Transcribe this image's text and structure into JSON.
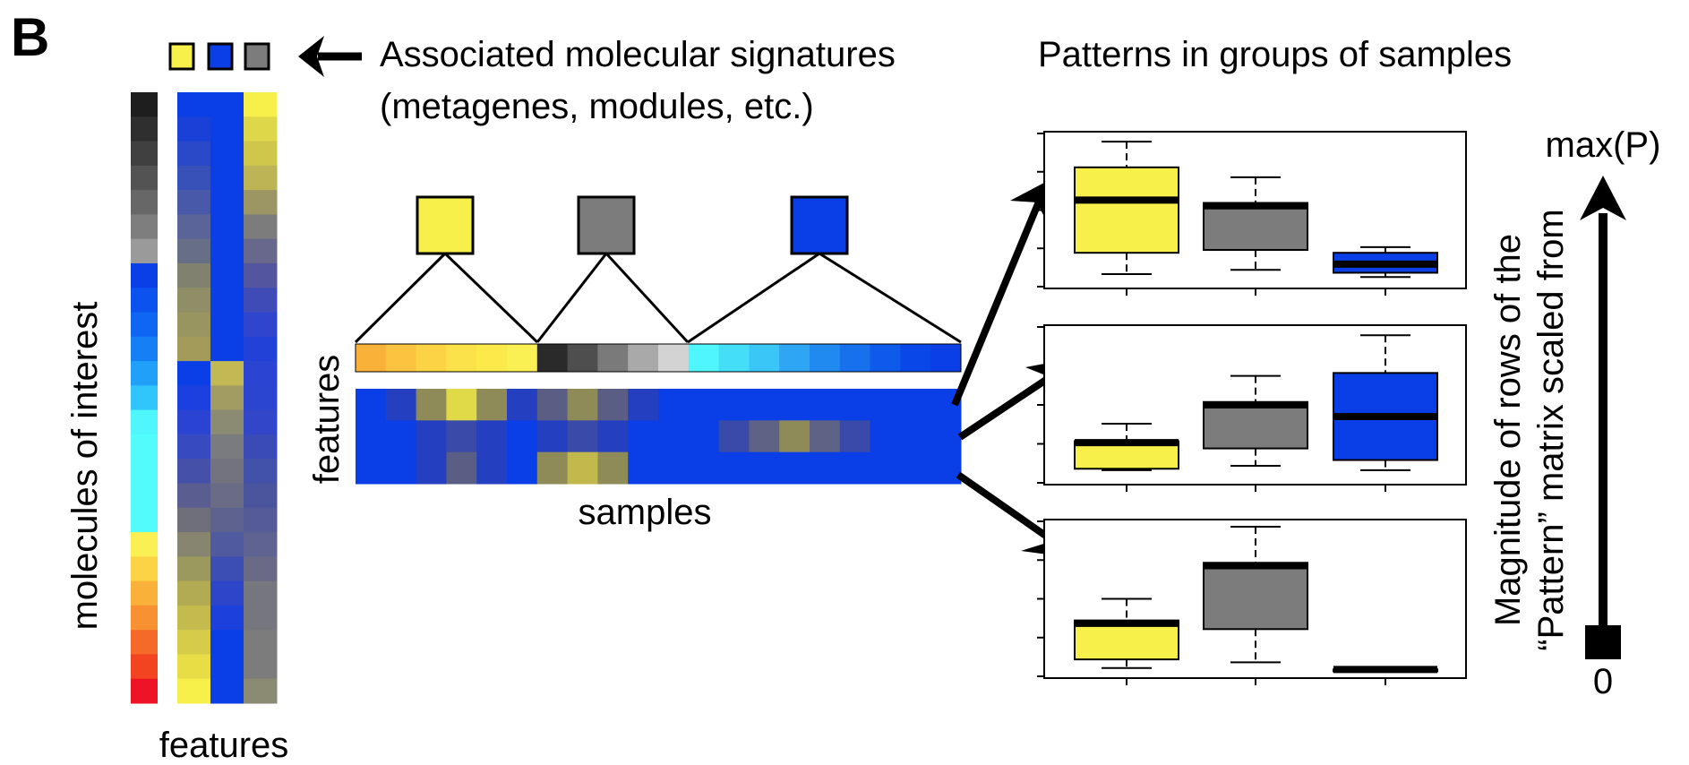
{
  "panel_letter": "B",
  "signature": {
    "title_line1": "Associated molecular signatures",
    "title_line2": "(metagenes, modules, etc.)",
    "legend_colors": [
      "#f7f04a",
      "#0a3fe8",
      "#7c7c7c"
    ]
  },
  "patterns_title": "Patterns in groups of samples",
  "labels": {
    "molecules_of_interest": "molecules of interest",
    "features_left": "features",
    "features_mid": "features",
    "samples": "samples"
  },
  "scale": {
    "line1": "Magnitude of rows of the",
    "line2": "“Pattern” matrix scaled from",
    "top": "max(P)",
    "bottom": "0"
  },
  "molecule_colors": [
    "#1e1e1e",
    "#2f2f2f",
    "#404040",
    "#535353",
    "#676767",
    "#7e7e7e",
    "#9a9a9a",
    "#0a3fe8",
    "#0b52ee",
    "#0e66f2",
    "#1580f5",
    "#20a0f8",
    "#30c6fb",
    "#4ff7fd",
    "#52fcfd",
    "#52fcfd",
    "#52fcfd",
    "#52fcfd",
    "#fbf053",
    "#fbd345",
    "#f9b13a",
    "#f89131",
    "#f56a28",
    "#f24421",
    "#ee1326"
  ],
  "feature_matrix": [
    [
      "#0a3fe8",
      "#0a3fe8",
      "#f7f04a"
    ],
    [
      "#1941d8",
      "#0a3fe8",
      "#dfd74a"
    ],
    [
      "#2a49c9",
      "#0a3fe8",
      "#cfc64c"
    ],
    [
      "#3751b9",
      "#0a3fe8",
      "#bdb555"
    ],
    [
      "#4759a8",
      "#0a3fe8",
      "#9b9663"
    ],
    [
      "#5a6499",
      "#0a3fe8",
      "#7d7c7d"
    ],
    [
      "#676f86",
      "#0a3fe8",
      "#68678c"
    ],
    [
      "#80826f",
      "#0a3fe8",
      "#53569e"
    ],
    [
      "#8f8e66",
      "#0a3fe8",
      "#3f4cb7"
    ],
    [
      "#999560",
      "#0a3fe8",
      "#2f45cd"
    ],
    [
      "#a29b5a",
      "#0a3fe8",
      "#2141d7"
    ],
    [
      "#0a3fe8",
      "#c2b955",
      "#2b45d2"
    ],
    [
      "#1b40e0",
      "#a29b62",
      "#2c45d0"
    ],
    [
      "#2a43d3",
      "#8b8a72",
      "#3146c8"
    ],
    [
      "#384ac0",
      "#7a7b7e",
      "#3a4ab7"
    ],
    [
      "#4551a9",
      "#72737f",
      "#4251aa"
    ],
    [
      "#5a5d8f",
      "#6a6c86",
      "#4b559e"
    ],
    [
      "#6f6f7c",
      "#5d628f",
      "#545b96"
    ],
    [
      "#878570",
      "#4f5a9f",
      "#5e6391"
    ],
    [
      "#9c995f",
      "#3c4eb4",
      "#6a6a86"
    ],
    [
      "#b3ab53",
      "#2c45c9",
      "#76767e"
    ],
    [
      "#c4bb4f",
      "#1b40dc",
      "#76767e"
    ],
    [
      "#d6cc4a",
      "#0a3fe8",
      "#7c7c7c"
    ],
    [
      "#e9dd47",
      "#0a3fe8",
      "#7c7c7c"
    ],
    [
      "#f7f04a",
      "#0a3fe8",
      "#8b8a73"
    ]
  ],
  "sample_bar_colors": [
    "#f9b13a",
    "#fbc33f",
    "#fbd345",
    "#fce24a",
    "#fcea4b",
    "#fbf053",
    "#2a2a2a",
    "#4e4e4e",
    "#7a7a7a",
    "#a9a9a9",
    "#d3d3d3",
    "#4ff7fd",
    "#44def9",
    "#3ac6f6",
    "#2ea6f3",
    "#218af0",
    "#1770ec",
    "#0e5aea",
    "#0a47e8",
    "#0a3fe8"
  ],
  "sample_matrix": [
    [
      "#0a3fe8",
      "#243fbf",
      "#8e8b58",
      "#e0da48",
      "#8e8b58",
      "#243fbf",
      "#5a5d84",
      "#8e8b58",
      "#5a5d84",
      "#243fbf",
      "#0a3fe8",
      "#0a3fe8",
      "#0a3fe8",
      "#0a3fe8",
      "#0a3fe8",
      "#0a3fe8",
      "#0a3fe8",
      "#0a3fe8",
      "#0a3fe8",
      "#0a3fe8"
    ],
    [
      "#0a3fe8",
      "#0a3fe8",
      "#243fbf",
      "#3a4aa8",
      "#243fbf",
      "#0a3fe8",
      "#243fbf",
      "#3a4aa8",
      "#243fbf",
      "#0a3fe8",
      "#0a3fe8",
      "#0a3fe8",
      "#3a4aa8",
      "#5e6285",
      "#8e8b58",
      "#5e6285",
      "#3a4aa8",
      "#0a3fe8",
      "#0a3fe8",
      "#0a3fe8"
    ],
    [
      "#0a3fe8",
      "#0a3fe8",
      "#243fbf",
      "#5a5d84",
      "#243fbf",
      "#0a3fe8",
      "#8e8b58",
      "#c2b94c",
      "#8e8b58",
      "#0a3fe8",
      "#0a3fe8",
      "#0a3fe8",
      "#0a3fe8",
      "#0a3fe8",
      "#0a3fe8",
      "#0a3fe8",
      "#0a3fe8",
      "#0a3fe8",
      "#0a3fe8",
      "#0a3fe8"
    ]
  ],
  "tree_nodes": [
    {
      "color": "#f7f04a"
    },
    {
      "color": "#7c7c7c"
    },
    {
      "color": "#0a3fe8"
    }
  ],
  "boxplot_panels": [
    {
      "ylim": [
        0,
        1
      ],
      "boxes": [
        {
          "color": "#f7f04a",
          "min": 0.05,
          "q1": 0.2,
          "median": 0.57,
          "q3": 0.8,
          "max": 0.98
        },
        {
          "color": "#7c7c7c",
          "min": 0.08,
          "q1": 0.22,
          "median": 0.53,
          "q3": 0.55,
          "max": 0.73
        },
        {
          "color": "#0a3fe8",
          "min": 0.03,
          "q1": 0.06,
          "median": 0.12,
          "q3": 0.2,
          "max": 0.24
        }
      ]
    },
    {
      "ylim": [
        0,
        1
      ],
      "boxes": [
        {
          "color": "#f7f04a",
          "min": 0.05,
          "q1": 0.06,
          "median": 0.24,
          "q3": 0.25,
          "max": 0.37
        },
        {
          "color": "#7c7c7c",
          "min": 0.08,
          "q1": 0.2,
          "median": 0.5,
          "q3": 0.52,
          "max": 0.7
        },
        {
          "color": "#0a3fe8",
          "min": 0.05,
          "q1": 0.12,
          "median": 0.42,
          "q3": 0.72,
          "max": 0.98
        }
      ]
    },
    {
      "ylim": [
        0,
        1
      ],
      "boxes": [
        {
          "color": "#f7f04a",
          "min": 0.02,
          "q1": 0.08,
          "median": 0.33,
          "q3": 0.35,
          "max": 0.5
        },
        {
          "color": "#7c7c7c",
          "min": 0.06,
          "q1": 0.29,
          "median": 0.73,
          "q3": 0.75,
          "max": 1.0
        },
        {
          "color": "#0a3fe8",
          "min": 0.0,
          "q1": 0.0,
          "median": 0.01,
          "q3": 0.01,
          "max": 0.01
        }
      ]
    }
  ]
}
